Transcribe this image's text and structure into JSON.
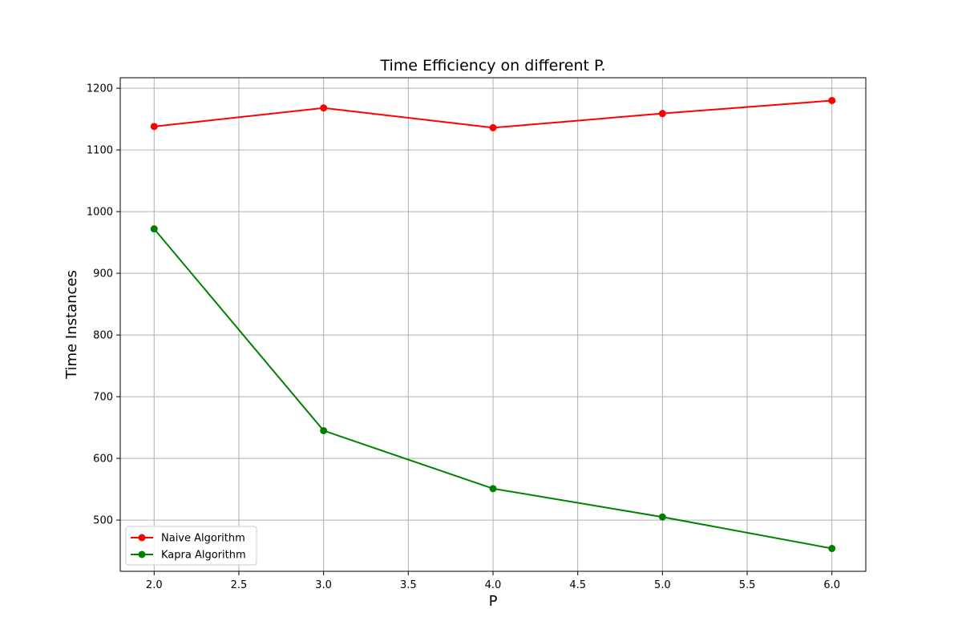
{
  "chart_data": {
    "type": "line",
    "title": "Time Efficiency on different P.",
    "xlabel": "P",
    "ylabel": "Time Instances",
    "x": [
      2,
      3,
      4,
      5,
      6
    ],
    "xlim": [
      1.8,
      6.2
    ],
    "ylim": [
      417,
      1217
    ],
    "xticks": [
      "2.0",
      "2.5",
      "3.0",
      "3.5",
      "4.0",
      "4.5",
      "5.0",
      "5.5",
      "6.0"
    ],
    "yticks": [
      "500",
      "600",
      "700",
      "800",
      "900",
      "1000",
      "1100",
      "1200"
    ],
    "grid": true,
    "legend_position": "lower-left",
    "series": [
      {
        "name": "Naive Algorithm",
        "color": "#ff0000",
        "marker": "circle",
        "values": [
          1138,
          1168,
          1136,
          1159,
          1180
        ]
      },
      {
        "name": "Kapra Algorithm",
        "color": "#008000",
        "marker": "circle",
        "values": [
          972,
          645,
          551,
          505,
          454
        ]
      }
    ]
  }
}
